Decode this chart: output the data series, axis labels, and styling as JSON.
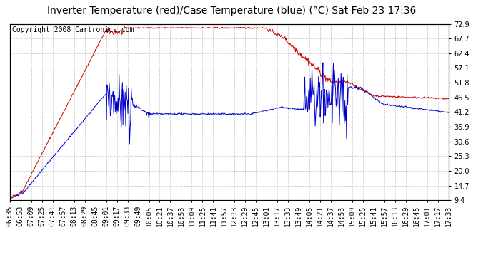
{
  "title": "Inverter Temperature (red)/Case Temperature (blue) (°C) Sat Feb 23 17:36",
  "copyright": "Copyright 2008 Cartronics.com",
  "background_color": "#ffffff",
  "plot_bg_color": "#ffffff",
  "grid_color": "#c8c8c8",
  "y_ticks": [
    9.4,
    14.7,
    20.0,
    25.3,
    30.6,
    35.9,
    41.2,
    46.5,
    51.8,
    57.1,
    62.4,
    67.7,
    72.9
  ],
  "y_min": 9.4,
  "y_max": 72.9,
  "x_labels": [
    "06:35",
    "06:53",
    "07:09",
    "07:25",
    "07:41",
    "07:57",
    "08:13",
    "08:29",
    "08:45",
    "09:01",
    "09:17",
    "09:33",
    "09:49",
    "10:05",
    "10:21",
    "10:37",
    "10:53",
    "11:09",
    "11:25",
    "11:41",
    "11:57",
    "12:13",
    "12:29",
    "12:45",
    "13:01",
    "13:17",
    "13:33",
    "13:49",
    "14:05",
    "14:21",
    "14:37",
    "14:53",
    "15:09",
    "15:25",
    "15:41",
    "15:57",
    "16:13",
    "16:29",
    "16:45",
    "17:01",
    "17:17",
    "17:33"
  ],
  "red_color": "#cc0000",
  "blue_color": "#0000cc",
  "title_fontsize": 10,
  "copyright_fontsize": 7,
  "tick_fontsize": 7,
  "left_ytick_labels": false
}
